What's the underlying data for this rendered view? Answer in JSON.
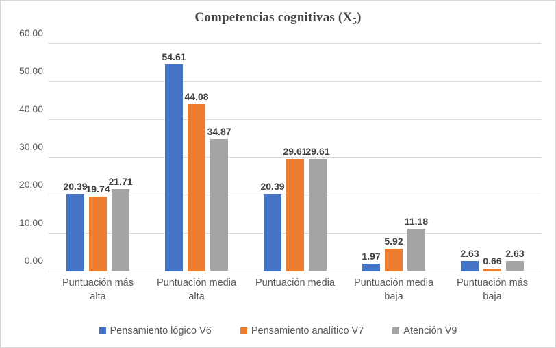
{
  "title": {
    "main": "Competencias cognitivas (X",
    "subscript": "5",
    "suffix": ")"
  },
  "chart_data": {
    "type": "bar",
    "title": "Competencias cognitivas (X5)",
    "categories": [
      "Puntuación más alta",
      "Puntuación media alta",
      "Puntuación media",
      "Puntuación media baja",
      "Puntuación más baja"
    ],
    "series": [
      {
        "name": "Pensamiento lógico V6",
        "color": "#4472C4",
        "values": [
          20.39,
          54.61,
          20.39,
          1.97,
          2.63
        ]
      },
      {
        "name": "Pensamiento analítico V7",
        "color": "#ED7D31",
        "values": [
          19.74,
          44.08,
          29.61,
          5.92,
          0.66
        ]
      },
      {
        "name": "Atención V9",
        "color": "#A5A5A5",
        "values": [
          21.71,
          34.87,
          29.61,
          11.18,
          2.63
        ]
      }
    ],
    "xlabel": "",
    "ylabel": "",
    "ylim": [
      0,
      60
    ],
    "ytick_step": 10,
    "ytick_labels": [
      "0.00",
      "10.00",
      "20.00",
      "30.00",
      "40.00",
      "50.00",
      "60.00"
    ],
    "grid": true,
    "data_labels": true,
    "data_label_decimals": 2,
    "legend_position": "bottom"
  },
  "colors": {
    "series_blue": "#4472C4",
    "series_orange": "#ED7D31",
    "series_gray": "#A5A5A5",
    "gridline": "#D9D9D9",
    "axis_line": "#C0C0C0",
    "tick_text": "#595959",
    "label_text": "#404040",
    "title_text": "#444444",
    "border": "#D5D5D5"
  }
}
